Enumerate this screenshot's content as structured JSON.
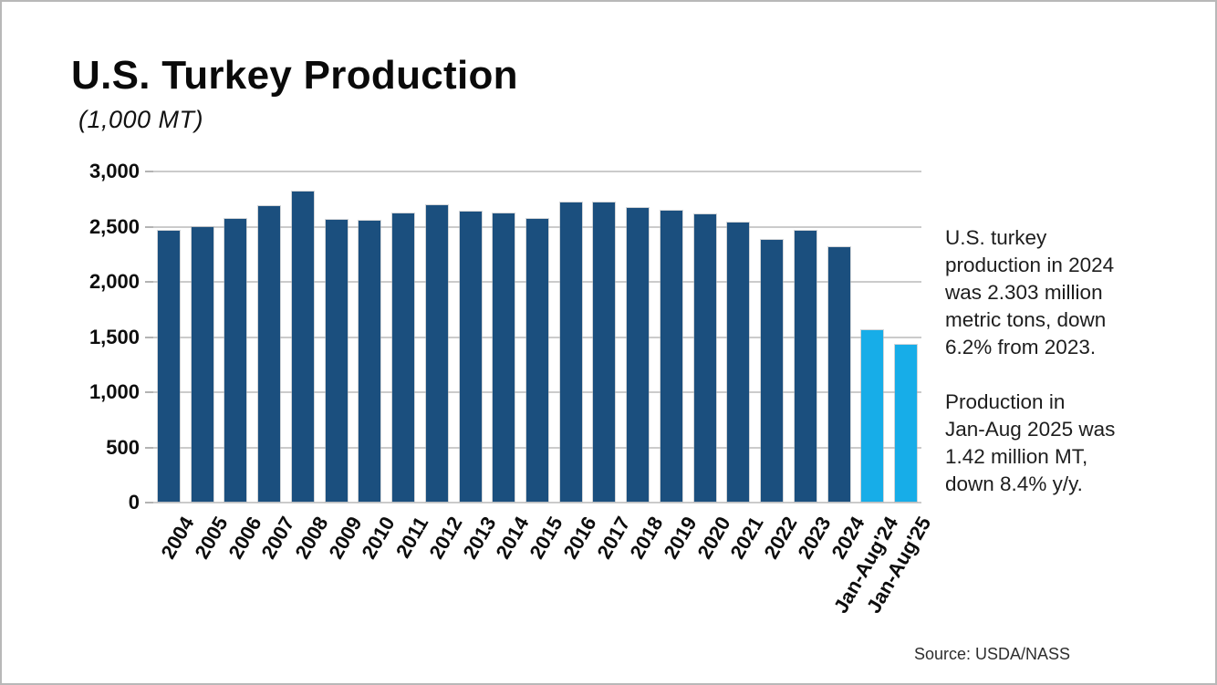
{
  "header": {
    "title": "U.S. Turkey Production",
    "subtitle": "(1,000 MT)"
  },
  "annotation": {
    "paragraph1_lines": [
      "U.S. turkey",
      "production in 2024",
      "was 2.303 million",
      "metric tons, down",
      "6.2% from 2023."
    ],
    "paragraph2_lines": [
      "Production in",
      "Jan-Aug 2025 was",
      "1.42 million MT,",
      "down 8.4% y/y."
    ]
  },
  "source_note": "Source: USDA/NASS",
  "colors": {
    "annual_bar": "#1b4f7e",
    "partial_year_bar": "#17ade8",
    "gridline": "#cbcbcb",
    "text": "#0d0d0d"
  },
  "chart_data": {
    "type": "bar",
    "title": "U.S. Turkey Production",
    "ylabel": "(1,000 MT)",
    "xlabel": "",
    "categories": [
      "2004",
      "2005",
      "2006",
      "2007",
      "2008",
      "2009",
      "2010",
      "2011",
      "2012",
      "2013",
      "2014",
      "2015",
      "2016",
      "2017",
      "2018",
      "2019",
      "2020",
      "2021",
      "2022",
      "2023",
      "2024",
      "Jan-Aug'24",
      "Jan-Aug'25"
    ],
    "values": [
      2455,
      2490,
      2560,
      2675,
      2810,
      2555,
      2545,
      2615,
      2690,
      2625,
      2615,
      2565,
      2710,
      2715,
      2665,
      2640,
      2600,
      2525,
      2370,
      2455,
      2303,
      1550,
      1420
    ],
    "highlight_from_index": 21,
    "bar_color": "#1b4f7e",
    "highlight_color": "#17ade8",
    "ylim": [
      0,
      3000
    ],
    "ytick_step": 500,
    "ytick_labels_top_to_bottom": [
      "3,000",
      "2,500",
      "2,000",
      "1,500",
      "1,000",
      "500",
      "0"
    ],
    "grid": true,
    "legend": "none",
    "xlabel_angle_deg": -60
  }
}
